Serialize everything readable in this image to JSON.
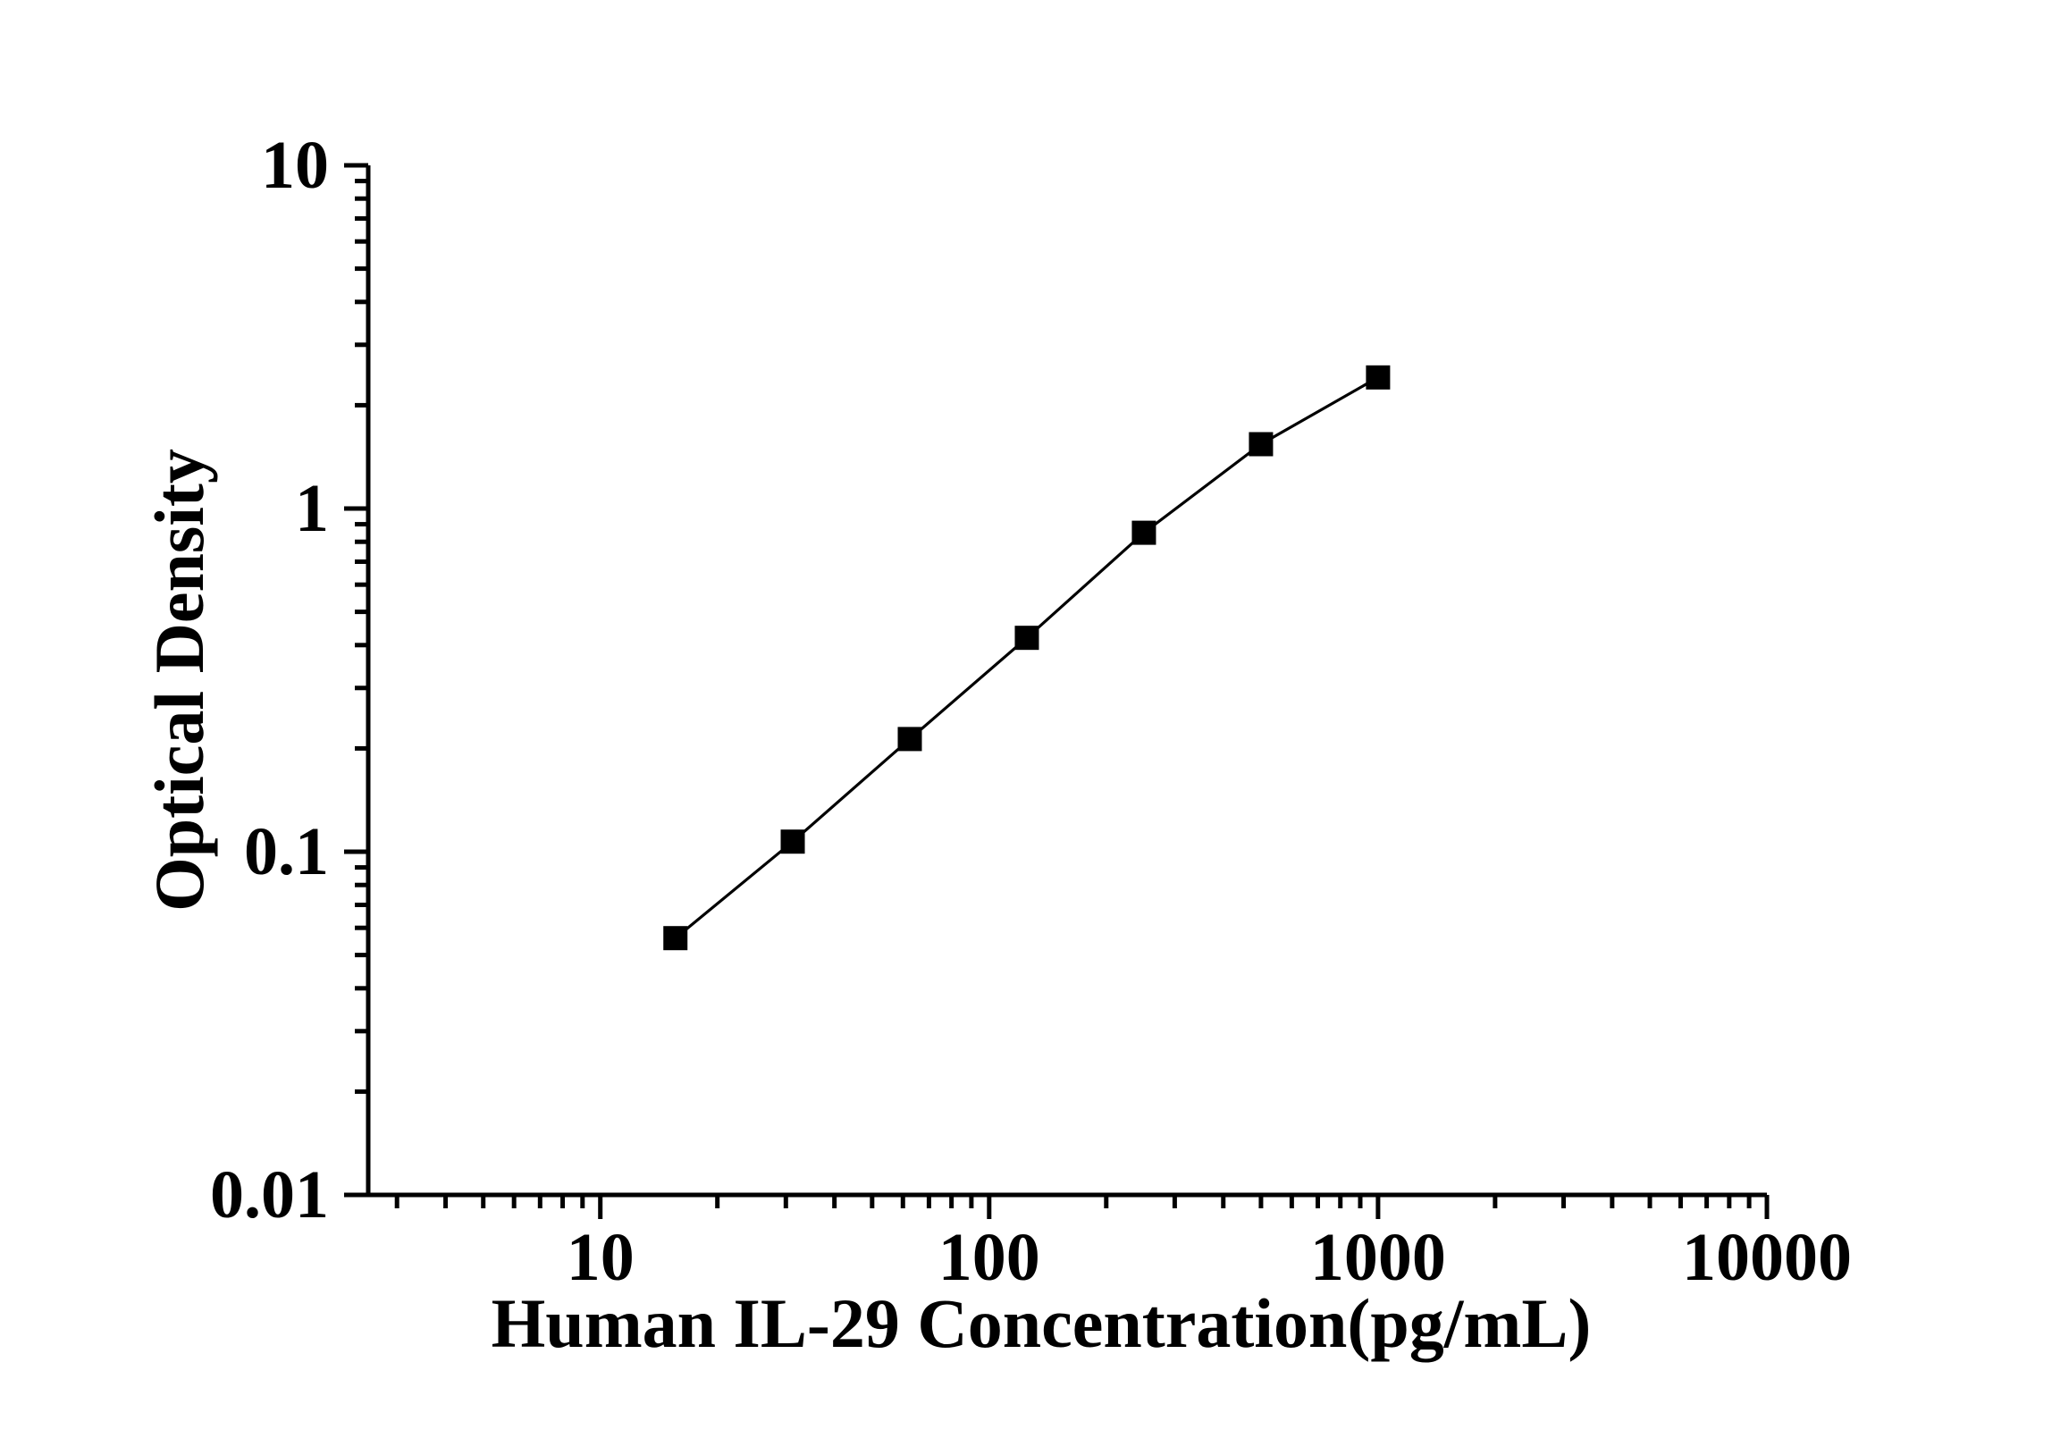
{
  "chart_data": {
    "type": "line",
    "title": "",
    "xlabel": "Human IL-29 Concentration(pg/mL)",
    "ylabel": "Optical Density",
    "xscale": "log",
    "yscale": "log",
    "xlim": [
      2.53,
      10000
    ],
    "ylim": [
      0.01,
      10
    ],
    "grid": false,
    "legend": "none",
    "marker": "filled-square",
    "line_color": "#000000",
    "marker_color": "#000000",
    "axis_color": "#000000",
    "background_color": "#ffffff",
    "x": [
      15.6,
      31.25,
      62.5,
      125,
      250,
      500,
      1000
    ],
    "series": [
      {
        "values": [
          0.056,
          0.107,
          0.213,
          0.42,
          0.85,
          1.54,
          2.41
        ]
      }
    ],
    "x_major_ticks": {
      "values": [
        10,
        100,
        1000,
        10000
      ],
      "labels": [
        "10",
        "100",
        "1000",
        "10000"
      ]
    },
    "y_major_ticks": {
      "values": [
        10,
        1,
        0.1,
        0.01
      ],
      "labels": [
        "10",
        "1",
        "0.1",
        "0.01"
      ]
    }
  }
}
